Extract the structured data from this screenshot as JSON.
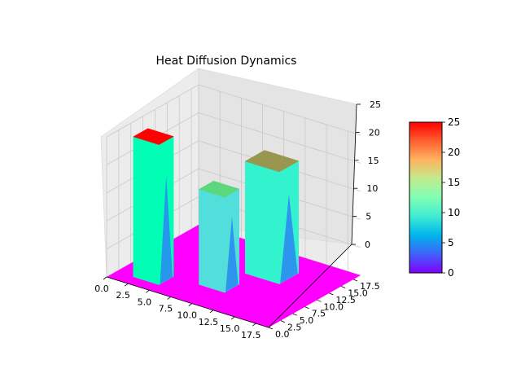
{
  "chart_data": {
    "type": "surface3d",
    "title": "Heat Diffusion Dynamics",
    "colormap": "rainbow",
    "xlabel": "",
    "ylabel": "",
    "zlabel": "",
    "x_ticks": [
      "0.0",
      "2.5",
      "5.0",
      "7.5",
      "10.0",
      "12.5",
      "15.0",
      "17.5"
    ],
    "y_ticks": [
      "0.0",
      "2.5",
      "5.0",
      "7.5",
      "10.0",
      "12.5",
      "15.0",
      "17.5"
    ],
    "z_ticks": [
      "0",
      "5",
      "10",
      "15",
      "20",
      "25"
    ],
    "xlim": [
      0,
      19
    ],
    "ylim": [
      0,
      19
    ],
    "zlim": [
      0,
      25
    ],
    "base_value": 0,
    "blocks": [
      {
        "x": [
          2,
          5
        ],
        "y": [
          2,
          5
        ],
        "z": 25
      },
      {
        "x": [
          8,
          11
        ],
        "y": [
          5,
          8
        ],
        "z": 17
      },
      {
        "x": [
          10,
          14
        ],
        "y": [
          11,
          15
        ],
        "z": 20
      }
    ],
    "colorbar": {
      "ticks": [
        "0",
        "5",
        "10",
        "15",
        "20",
        "25"
      ],
      "range": [
        0,
        25
      ]
    }
  }
}
